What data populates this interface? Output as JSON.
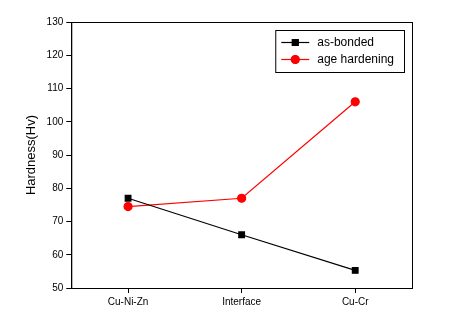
{
  "chart_data": {
    "type": "line",
    "categories": [
      "Cu-Ni-Zn",
      "Interface",
      "Cu-Cr"
    ],
    "y_label": "Hardness(Hv)",
    "series": [
      {
        "name": "as-bonded",
        "color": "#000000",
        "marker": "square",
        "values": [
          77,
          66,
          55.3
        ]
      },
      {
        "name": "age hardening",
        "color": "#ff0000",
        "marker": "circle",
        "values": [
          74.5,
          77,
          106
        ]
      }
    ],
    "ylim": [
      50,
      130
    ],
    "yticks": [
      50,
      60,
      70,
      80,
      90,
      100,
      110,
      120,
      130
    ],
    "grid": false,
    "legend": "upper right"
  }
}
